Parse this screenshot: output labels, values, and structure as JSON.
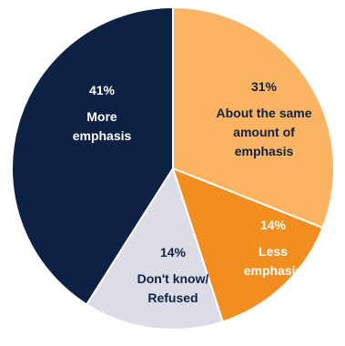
{
  "chart_data": {
    "type": "pie",
    "slices": [
      {
        "label_lines": [
          "About the same",
          "amount of",
          "emphasis"
        ],
        "value": 31,
        "value_text": "31%",
        "color": "#FDB462",
        "label_color": "#0D2145"
      },
      {
        "label_lines": [
          "Less",
          "emphasis"
        ],
        "value": 14,
        "value_text": "14%",
        "color": "#F28E1F",
        "label_color": "#FFFFFF"
      },
      {
        "label_lines": [
          "Don't know/",
          "Refused"
        ],
        "value": 14,
        "value_text": "14%",
        "color": "#DCDCE6",
        "label_color": "#0D2145"
      },
      {
        "label_lines": [
          "More",
          "emphasis"
        ],
        "value": 41,
        "value_text": "41%",
        "color": "#0D2145",
        "label_color": "#FFFFFF"
      }
    ],
    "start": "top",
    "direction": "clockwise"
  }
}
